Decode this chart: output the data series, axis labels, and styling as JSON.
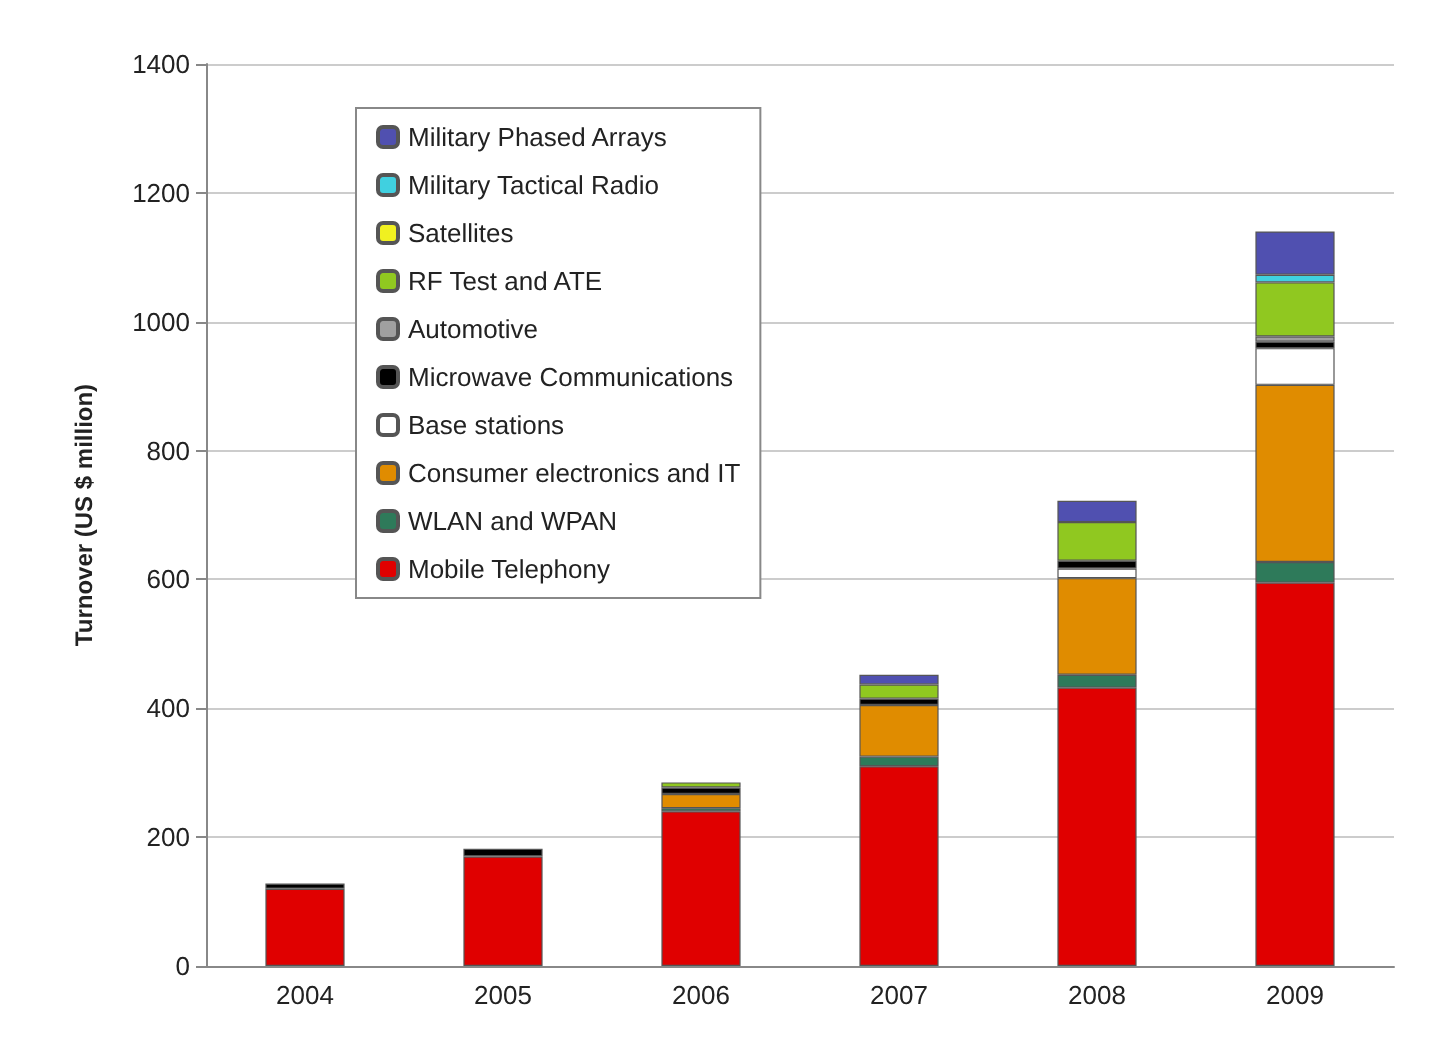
{
  "chart_data": {
    "type": "bar",
    "stacked": true,
    "ylabel": "Turnover (US $ million)",
    "categories": [
      "2004",
      "2005",
      "2006",
      "2007",
      "2008",
      "2009"
    ],
    "series": [
      {
        "name": "Mobile Telephony",
        "color": "#e00000",
        "values": [
          120,
          170,
          240,
          310,
          432,
          595
        ]
      },
      {
        "name": "WLAN and WPAN",
        "color": "#2e7a5a",
        "values": [
          null,
          null,
          5,
          15,
          20,
          32
        ]
      },
      {
        "name": "Consumer electronics and IT",
        "color": "#e08c00",
        "values": [
          null,
          null,
          22,
          80,
          150,
          275
        ]
      },
      {
        "name": "Base stations",
        "color": "#ffffff",
        "values": [
          null,
          null,
          null,
          null,
          15,
          57
        ]
      },
      {
        "name": "Microwave Communications",
        "color": "#000000",
        "values": [
          8,
          12,
          10,
          10,
          12,
          10
        ]
      },
      {
        "name": "Automotive",
        "color": "#a0a0a0",
        "values": [
          null,
          null,
          null,
          null,
          null,
          8
        ]
      },
      {
        "name": "RF Test and ATE",
        "color": "#90c820",
        "values": [
          null,
          null,
          8,
          22,
          60,
          84
        ]
      },
      {
        "name": "Satellites",
        "color": "#f0f020",
        "values": [
          null,
          null,
          null,
          null,
          null,
          null
        ]
      },
      {
        "name": "Military Tactical Radio",
        "color": "#40d0e0",
        "values": [
          null,
          null,
          null,
          null,
          null,
          12
        ]
      },
      {
        "name": "Military Phased Arrays",
        "color": "#5050b0",
        "values": [
          null,
          null,
          null,
          15,
          33,
          67
        ]
      }
    ],
    "ylim": [
      0,
      1400
    ],
    "yticks": [
      0,
      200,
      400,
      600,
      800,
      1000,
      1200,
      1400
    ],
    "grid": "y",
    "legend": "top left"
  }
}
